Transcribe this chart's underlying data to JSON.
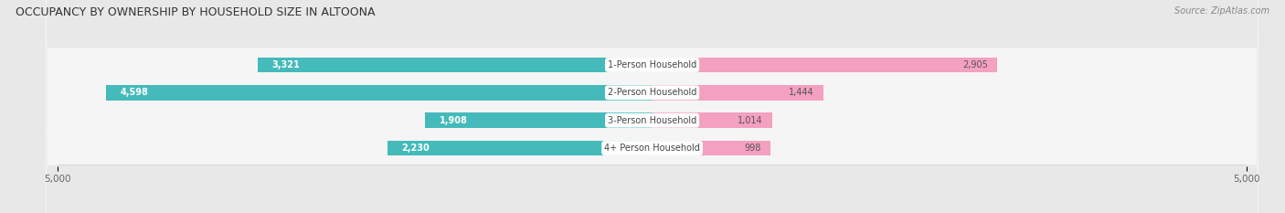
{
  "title": "OCCUPANCY BY OWNERSHIP BY HOUSEHOLD SIZE IN ALTOONA",
  "source": "Source: ZipAtlas.com",
  "categories": [
    "1-Person Household",
    "2-Person Household",
    "3-Person Household",
    "4+ Person Household"
  ],
  "owner_values": [
    3321,
    4598,
    1908,
    2230
  ],
  "renter_values": [
    2905,
    1444,
    1014,
    998
  ],
  "max_scale": 5000,
  "owner_color": "#45BABA",
  "renter_color": "#F4A0C0",
  "background_color": "#e8e8e8",
  "bar_background": "#f5f5f5",
  "row_bg_color": "#ebebeb",
  "title_fontsize": 9,
  "label_fontsize": 7,
  "tick_fontsize": 7.5,
  "legend_fontsize": 7.5,
  "source_fontsize": 7,
  "value_fontsize": 7
}
